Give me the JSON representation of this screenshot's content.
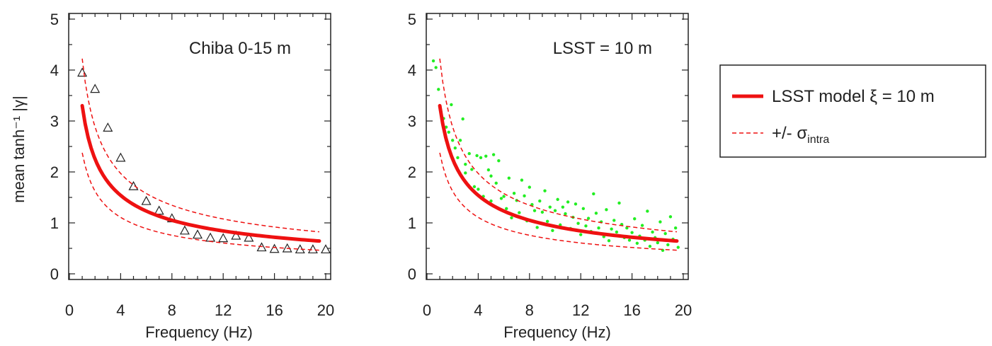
{
  "chart_data": [
    {
      "type": "scatter",
      "annotation": "Chiba 0-15 m",
      "xlabel": "Frequency (Hz)",
      "ylabel": "mean tanh⁻¹ |γ|",
      "xlim": [
        0,
        20
      ],
      "ylim": [
        0,
        5
      ],
      "xticks": [
        "0",
        "4",
        "8",
        "12",
        "16",
        "20"
      ],
      "yticks": [
        "0",
        "1",
        "2",
        "3",
        "4",
        "5"
      ],
      "grid": false,
      "model": {
        "coefficient": 3.3,
        "exponent": 0.55,
        "sigma": 0.28,
        "x_range": [
          1,
          19.5
        ]
      },
      "series": [
        {
          "marker": "triangle",
          "x": [
            1,
            2,
            3,
            4,
            5,
            6,
            7,
            8,
            9,
            10,
            11,
            12,
            13,
            14,
            15,
            16,
            17,
            18,
            19,
            20
          ],
          "y": [
            3.95,
            3.63,
            2.87,
            2.28,
            1.72,
            1.43,
            1.24,
            1.09,
            0.85,
            0.77,
            0.71,
            0.7,
            0.75,
            0.71,
            0.52,
            0.49,
            0.5,
            0.48,
            0.48,
            0.48
          ]
        }
      ]
    },
    {
      "type": "scatter",
      "annotation": "LSST = 10 m",
      "xlabel": "Frequency (Hz)",
      "ylabel": "",
      "xlim": [
        0,
        20
      ],
      "ylim": [
        0,
        5
      ],
      "xticks": [
        "0",
        "4",
        "8",
        "12",
        "16",
        "20"
      ],
      "yticks": [
        "0",
        "1",
        "2",
        "3",
        "4",
        "5"
      ],
      "grid": false,
      "model": {
        "coefficient": 3.3,
        "exponent": 0.55,
        "sigma": 0.28,
        "x_range": [
          1,
          19.5
        ]
      },
      "series": [
        {
          "marker": "dot",
          "color": "#22ee22",
          "x": [
            0.5,
            0.7,
            0.9,
            1.1,
            1.3,
            1.5,
            1.5,
            1.7,
            1.9,
            2.0,
            2.2,
            2.4,
            2.6,
            2.8,
            3.0,
            3.0,
            3.3,
            3.5,
            3.7,
            3.9,
            4.0,
            4.2,
            4.4,
            4.6,
            4.8,
            5.0,
            5.0,
            5.2,
            5.4,
            5.6,
            5.8,
            6.0,
            6.2,
            6.4,
            6.6,
            6.8,
            7.0,
            7.2,
            7.4,
            7.6,
            7.8,
            8.0,
            8.2,
            8.4,
            8.6,
            8.8,
            9.0,
            9.2,
            9.4,
            9.6,
            9.8,
            10.0,
            10.2,
            10.4,
            10.6,
            10.8,
            11.0,
            11.2,
            11.4,
            11.6,
            11.8,
            12.0,
            12.2,
            12.4,
            12.6,
            12.8,
            13.0,
            13.2,
            13.4,
            13.6,
            13.8,
            14.0,
            14.2,
            14.4,
            14.6,
            14.8,
            15.0,
            15.2,
            15.4,
            15.6,
            15.8,
            16.0,
            16.2,
            16.4,
            16.6,
            16.8,
            17.0,
            17.2,
            17.4,
            17.6,
            17.8,
            18.0,
            18.2,
            18.4,
            18.6,
            18.8,
            19.0,
            19.2,
            19.4,
            19.6
          ],
          "y": [
            4.18,
            4.05,
            3.62,
            3.18,
            3.05,
            2.88,
            2.62,
            2.78,
            3.32,
            2.62,
            2.47,
            2.28,
            2.62,
            3.04,
            2.15,
            1.98,
            2.36,
            2.05,
            1.71,
            2.32,
            1.66,
            2.28,
            1.52,
            2.31,
            2.04,
            1.92,
            1.43,
            2.34,
            1.78,
            2.22,
            1.48,
            1.52,
            1.28,
            1.88,
            1.1,
            1.58,
            1.44,
            1.2,
            1.84,
            1.53,
            1.04,
            1.7,
            1.36,
            1.24,
            0.91,
            1.43,
            1.21,
            1.63,
            1.03,
            1.31,
            0.85,
            1.24,
            1.46,
            0.96,
            1.31,
            1.18,
            1.41,
            0.89,
            1.11,
            1.37,
            0.99,
            0.77,
            1.28,
            0.94,
            1.09,
            0.83,
            1.57,
            1.19,
            0.9,
            1.02,
            0.73,
            1.26,
            0.65,
            0.88,
            1.05,
            0.82,
            1.39,
            0.97,
            0.71,
            0.9,
            0.66,
            0.81,
            1.08,
            0.6,
            0.74,
            0.95,
            0.66,
            1.23,
            0.54,
            0.82,
            0.71,
            0.61,
            1.02,
            0.46,
            0.79,
            0.57,
            1.12,
            0.68,
            0.9,
            0.52
          ]
        }
      ]
    }
  ],
  "legend": {
    "entries": [
      {
        "style": "solid",
        "color": "#ee1111",
        "text": "LSST model ξ = 10 m"
      },
      {
        "style": "dashed",
        "color": "#ee1111",
        "text": "+/- σ",
        "subscript": "intra"
      }
    ]
  }
}
